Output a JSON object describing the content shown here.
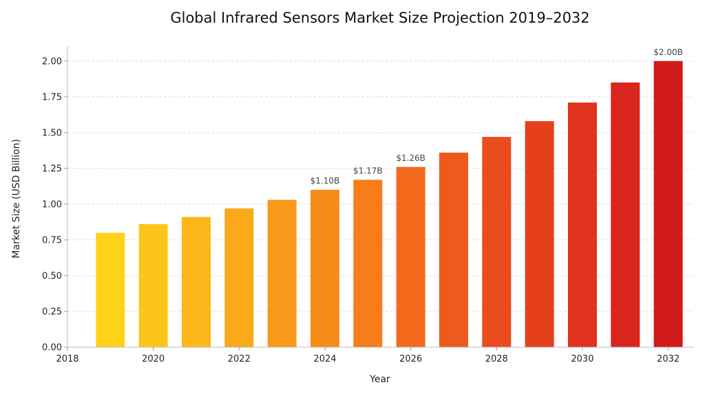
{
  "chart_data": {
    "type": "bar",
    "title": "Global Infrared Sensors Market Size Projection 2019–2032",
    "xlabel": "Year",
    "ylabel": "Market Size (USD Billion)",
    "x": [
      2019,
      2020,
      2021,
      2022,
      2023,
      2024,
      2025,
      2026,
      2027,
      2028,
      2029,
      2030,
      2031,
      2032
    ],
    "values": [
      0.8,
      0.86,
      0.91,
      0.97,
      1.03,
      1.1,
      1.17,
      1.26,
      1.36,
      1.47,
      1.58,
      1.71,
      1.85,
      2.0
    ],
    "xlim": [
      2018,
      2032.6
    ],
    "ylim": [
      0,
      2.1
    ],
    "x_ticks": [
      "2018",
      "2020",
      "2022",
      "2024",
      "2026",
      "2028",
      "2030",
      "2032"
    ],
    "y_ticks": [
      "0.00",
      "0.25",
      "0.50",
      "0.75",
      "1.00",
      "1.25",
      "1.50",
      "1.75",
      "2.00"
    ],
    "data_labels": [
      {
        "year": 2024,
        "text": "$1.10B"
      },
      {
        "year": 2025,
        "text": "$1.17B"
      },
      {
        "year": 2026,
        "text": "$1.26B"
      },
      {
        "year": 2032,
        "text": "$2.00B"
      }
    ],
    "grid": true,
    "colors": [
      "#FFD21A",
      "#FCC51A",
      "#FBB71A",
      "#FAA91A",
      "#F99A1A",
      "#F88C1A",
      "#F77C1A",
      "#F36A1C",
      "#EE5A1C",
      "#EA4C1C",
      "#E53F1C",
      "#E0321C",
      "#DA251C",
      "#D31A1A"
    ]
  }
}
